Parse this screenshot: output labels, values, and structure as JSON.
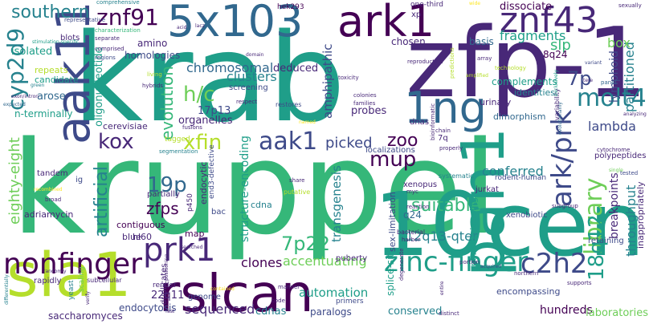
{
  "words": {
    "kruppel": "kruppel",
    "krab": "krab",
    "zfp_1": "zfp-1",
    "cen10": "10cen",
    "pan1": "pan1",
    "sla1": "sla1",
    "rslcan": "rslcan",
    "aak11": "aak11",
    "ng1": "1ng",
    "ark1": "ark1",
    "x5103": "5x103",
    "znf43": "znf43",
    "znf91": "znf91",
    "nonfinger": "nonfinger",
    "prk1": "prk1",
    "zinc_finger": "zinc-finger",
    "ark_prk": "ark/prk",
    "library": "library",
    "c2h2": "c2h2",
    "q12_18": "18q12",
    "molt4": "molt4",
    "cyp2d9": "cyp2d9",
    "southern": "southern",
    "hc": "h/c",
    "aak1": "aak1",
    "kox": "kox",
    "xfin": "xfin",
    "mup": "mup",
    "zoo": "zoo",
    "picked": "picked",
    "suitable": "suitable",
    "p7": "7p",
    "p22_7": "7p22",
    "p19": "19p",
    "eighty_eight": "eighty-eight",
    "artificial": "artificial",
    "zfps": "zfps",
    "evolution": "evolution",
    "chromosomal": "chromosomal",
    "clusters": "clusters",
    "amphipathic": "amphipathic",
    "fragments": "fragments",
    "slp": "slp",
    "q13_12": "12q13-qter",
    "accentuating": "accentuating",
    "sequenced": "sequenced",
    "automation": "automation",
    "clones": "clones",
    "transgenesis": "transgenesis",
    "structure_encoding": "structure-encoding",
    "lambda": "lambda",
    "conferred": "conferred",
    "throughput": "throughput",
    "partitioned": "partitioned",
    "lymphoid": "lymphoid",
    "box": "box",
    "breakpoints": "breakpoints",
    "hundreds": "hundreds",
    "laboratories": "laboratories",
    "conserved": "conserved",
    "cdnas": "cdnas",
    "paralogs": "paralogs",
    "endocytosis": "endocytosis",
    "genome": "genome",
    "saccharomyces": "saccharomyces",
    "q11_22": "22q11",
    "dissociate": "dissociate",
    "identities": "identities",
    "complements": "complements",
    "dimorphism": "dimorphism",
    "probes": "probes",
    "basis": "basis",
    "q24_8": "8q24",
    "chosen": "chosen",
    "deduced": "deduced",
    "homologies": "homologies",
    "amino": "amino",
    "isolated": "isolated",
    "repeats": "repeats",
    "candidate": "candidate",
    "arose": "arose",
    "n_terminally": "n-terminally",
    "oligonucleotide": "oligonucleotide",
    "p13_17": "17p13",
    "organelles": "organelles",
    "cerevisiae": "cerevisiae",
    "tandem": "tandem",
    "ig": "ig",
    "adriamycin": "adriamycin",
    "contiguous": "contiguous",
    "blue": "blue",
    "hl60": "hl60",
    "partially": "partially",
    "cdna": "cdna",
    "bac": "bac",
    "endocytic": "endocytic",
    "end3_defective": "end3-defective",
    "p450": "p450",
    "map": "map",
    "puberty": "puberty",
    "splice_site": "splice-site",
    "sex_limitation": "sex-limitation",
    "xenopus": "xenopus",
    "q24": "q24",
    "jurkat": "jurkat",
    "nonoverlapping": "nonoverlapping",
    "encompassing": "encompassing",
    "xenobiotic": "xenobiotic",
    "retaining": "retaining",
    "inappropriately": "inappropriately",
    "polypeptides": "polypeptides",
    "dnas": "dnas",
    "q7": "7q",
    "rodent_human": "rodent-human",
    "primers": "primers",
    "duplicates": "duplicates",
    "rapidly": "rapidly",
    "subcellular": "subcellular",
    "scaling": "scaling",
    "yeast": "yeast",
    "render": "render",
    "hek293": "hek293",
    "one_third": "one-third",
    "xp": "xp",
    "comprehensive": "comprehensive",
    "representative": "representative",
    "blots": "blots",
    "stimulation_specific": "stimulation-specific",
    "characterization": "characterization",
    "separate": "separate",
    "comprised": "comprised",
    "regions": "regions",
    "toxicity": "toxicity",
    "colonies": "colonies",
    "families": "families",
    "urinary": "urinary",
    "restores": "restores",
    "respect": "respect",
    "fusions": "fusions",
    "segmentation": "segmentation",
    "tagged": "tagged",
    "localizations": "localizations",
    "bioinformatic": "bioinformatic",
    "chain": "chain",
    "properly": "properly",
    "evolutionarily": "evolutionarily",
    "cytochrome": "cytochrome",
    "tested": "tested",
    "single": "single",
    "subgroup": "subgroup",
    "systematic": "systematic",
    "reaction": "reaction",
    "myc": "myc",
    "share": "share",
    "putative": "putative",
    "bacterial": "bacterial",
    "harbor": "harbor",
    "degenerate": "degenerate",
    "entire": "entire",
    "portion": "portion",
    "acquired": "acquired",
    "northern": "northern",
    "supports": "supports",
    "distinct": "distinct",
    "manner": "manner",
    "code": "code",
    "contained": "contained",
    "fast": "fast",
    "positioning": "positioning",
    "verify": "verify",
    "searched": "searched",
    "broad": "broad",
    "recombined": "recombined",
    "differentially": "differentially",
    "randomly": "randomly",
    "exon_intron": "exon/intron",
    "expected": "expected",
    "green": "green",
    "living": "living",
    "hybrids": "hybrids",
    "screening": "screening",
    "reproduction": "reproduction",
    "array": "array",
    "technology": "technology",
    "predictions": "predictions",
    "amplified": "amplified",
    "variability": "variability",
    "exclusively": "exclusively",
    "analyzing": "analyzing",
    "sexually": "sexually",
    "variant": "variant",
    "panel": "panel",
    "tere": "tere",
    "domain": "domain",
    "acid": "acid",
    "lacz": "lacz",
    "wide": "wide",
    "named": "named"
  }
}
